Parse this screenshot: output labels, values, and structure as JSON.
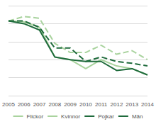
{
  "chart_data": {
    "type": "line",
    "categories": [
      "2005",
      "2006",
      "2007",
      "2008",
      "2009",
      "2010",
      "2011",
      "2012",
      "2013",
      "2014"
    ],
    "series": [
      {
        "name": "Flickor",
        "color": "#a9d39e",
        "line_style": "dashed",
        "values": [
          41.5,
          44,
          43,
          29,
          24,
          24,
          28,
          23,
          25,
          20
        ]
      },
      {
        "name": "Kvinnor",
        "color": "#a9d39e",
        "line_style": "solid",
        "values": [
          41.5,
          41,
          38,
          21.5,
          20,
          15,
          20,
          16.5,
          15,
          11.5
        ]
      },
      {
        "name": "Pojkar",
        "color": "#1f6b3c",
        "line_style": "dashed",
        "values": [
          41.5,
          41.5,
          38,
          26.5,
          26.5,
          19,
          21.5,
          19,
          18,
          16.5
        ]
      },
      {
        "name": "Män",
        "color": "#1f6b3c",
        "line_style": "solid",
        "values": [
          41.5,
          40,
          36.5,
          21.5,
          20,
          19,
          19,
          14,
          15,
          11.5
        ]
      }
    ],
    "ylim": [
      0,
      50
    ],
    "yticks": [
      0,
      10,
      20,
      30,
      40,
      50
    ],
    "grid": true,
    "legend": "bottom",
    "marker": "none",
    "tick_labels": "x"
  }
}
